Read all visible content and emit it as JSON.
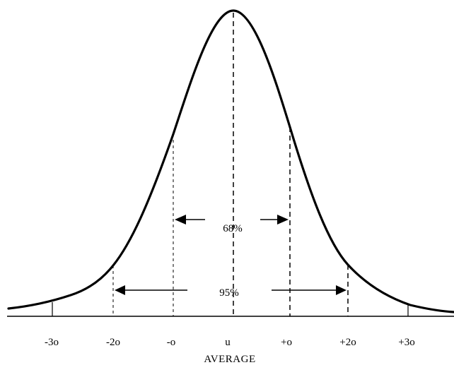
{
  "axis": {
    "ticks": [
      {
        "key": "m3",
        "label": "-3o"
      },
      {
        "key": "m2",
        "label": "-2o"
      },
      {
        "key": "m1",
        "label": "-o"
      },
      {
        "key": "mu",
        "label": "u"
      },
      {
        "key": "p1",
        "label": "+o"
      },
      {
        "key": "p2",
        "label": "+2o"
      },
      {
        "key": "p3",
        "label": "+3o"
      }
    ],
    "title": "AVERAGE"
  },
  "intervals": {
    "one_sigma": "68%",
    "two_sigma": "95%"
  }
}
